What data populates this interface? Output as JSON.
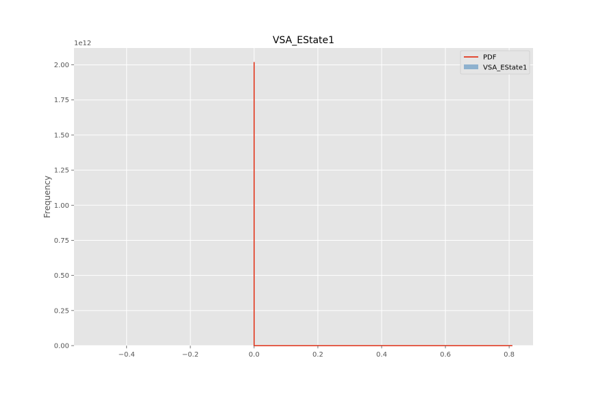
{
  "chart_data": {
    "type": "histogram",
    "title": "VSA_EState1",
    "xlabel": "",
    "ylabel": "Frequency",
    "y_offset_label": "1e12",
    "xlim": [
      -0.565,
      0.875
    ],
    "ylim": [
      0,
      2.12
    ],
    "x_ticks": [
      -0.4,
      -0.2,
      0.0,
      0.2,
      0.4,
      0.6,
      0.8
    ],
    "x_tick_labels": [
      "−0.4",
      "−0.2",
      "0.0",
      "0.2",
      "0.4",
      "0.6",
      "0.8"
    ],
    "y_ticks": [
      0.0,
      0.25,
      0.5,
      0.75,
      1.0,
      1.25,
      1.5,
      1.75,
      2.0
    ],
    "y_tick_labels": [
      "0.00",
      "0.25",
      "0.50",
      "0.75",
      "1.00",
      "1.25",
      "1.50",
      "1.75",
      "2.00"
    ],
    "grid": true,
    "legend_position": "top-right",
    "legend": [
      "PDF",
      "VSA_EState1"
    ],
    "series": [
      {
        "name": "PDF",
        "kind": "line",
        "color": "#E24A33",
        "x": [
          0.0,
          0.0,
          0.0,
          0.81
        ],
        "y": [
          0.0,
          2.02,
          0.0,
          0.0
        ]
      },
      {
        "name": "VSA_EState1",
        "kind": "histogram",
        "color": "#8EB1CE",
        "x": [
          0.0,
          0.81
        ],
        "y": [
          0.0,
          0.0
        ]
      }
    ]
  }
}
